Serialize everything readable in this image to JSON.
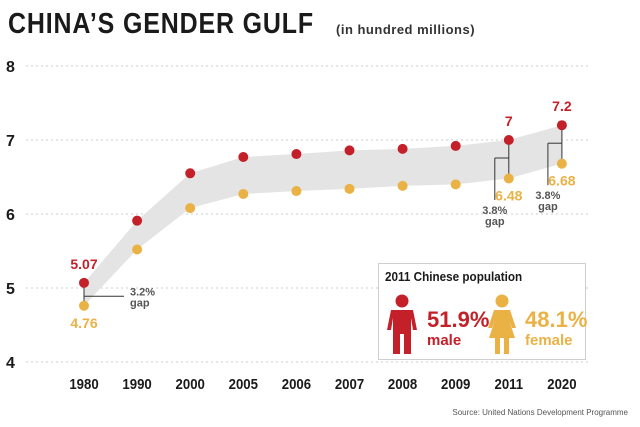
{
  "header": {
    "title": "CHINA’S GENDER GULF",
    "subtitle": "(in hundred millions)"
  },
  "colors": {
    "male": "#c4202a",
    "female": "#eab245",
    "band": "#e4e4e4",
    "axis": "#1a1a1a",
    "gap_text": "#555555"
  },
  "chart_data": {
    "type": "line",
    "title": "CHINA’S GENDER GULF",
    "subtitle": "(in hundred millions)",
    "categories": [
      "1980",
      "1990",
      "2000",
      "2005",
      "2006",
      "2007",
      "2008",
      "2009",
      "2011",
      "2020"
    ],
    "ylim": [
      4,
      8
    ],
    "yticks": [
      "4",
      "5",
      "6",
      "7",
      "8"
    ],
    "grid": true,
    "series": [
      {
        "name": "male",
        "values": [
          5.07,
          5.91,
          6.55,
          6.77,
          6.81,
          6.86,
          6.88,
          6.92,
          7.0,
          7.2
        ]
      },
      {
        "name": "female",
        "values": [
          4.76,
          5.52,
          6.08,
          6.27,
          6.31,
          6.34,
          6.38,
          6.4,
          6.48,
          6.68
        ]
      }
    ],
    "data_labels": [
      {
        "series": "male",
        "index": 0,
        "text": "5.07"
      },
      {
        "series": "female",
        "index": 0,
        "text": "4.76"
      },
      {
        "series": "male",
        "index": 8,
        "text": "7"
      },
      {
        "series": "female",
        "index": 8,
        "text": "6.48"
      },
      {
        "series": "male",
        "index": 9,
        "text": "7.2"
      },
      {
        "series": "female",
        "index": 9,
        "text": "6.68"
      }
    ],
    "gap_annotations": [
      {
        "index": 0,
        "pct": "3.2%",
        "word": "gap",
        "side": "right"
      },
      {
        "index": 8,
        "pct": "3.8%",
        "word": "gap",
        "side": "left"
      },
      {
        "index": 9,
        "pct": "3.8%",
        "word": "gap",
        "side": "left"
      }
    ]
  },
  "legend": {
    "title": "2011 Chinese population",
    "male_pct": "51.9%",
    "male_label": "male",
    "female_pct": "48.1%",
    "female_label": "female"
  },
  "source": "Source: United Nations Development Programme"
}
